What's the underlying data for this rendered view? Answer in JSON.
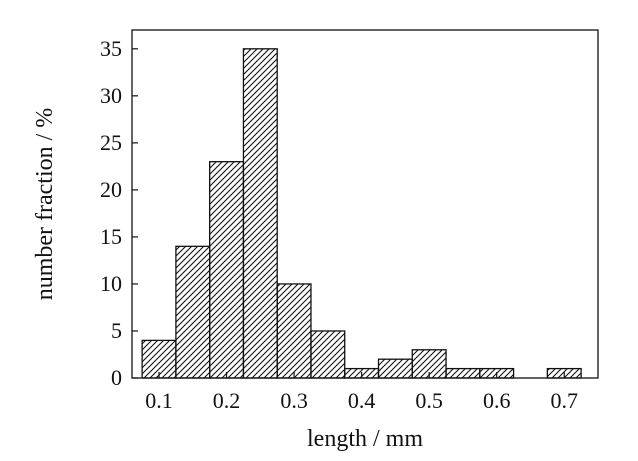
{
  "chart_data": {
    "type": "bar",
    "title": "",
    "xlabel": "length / mm",
    "ylabel": "number fraction / %",
    "bin_width": 0.05,
    "xlim": [
      0.06,
      0.75
    ],
    "ylim": [
      0,
      37
    ],
    "x_ticks": [
      0.1,
      0.2,
      0.3,
      0.4,
      0.5,
      0.6,
      0.7
    ],
    "x_tick_labels": [
      "0.1",
      "0.2",
      "0.3",
      "0.4",
      "0.5",
      "0.6",
      "0.7"
    ],
    "y_ticks": [
      0,
      5,
      10,
      15,
      20,
      25,
      30,
      35
    ],
    "y_tick_labels": [
      "0",
      "5",
      "10",
      "15",
      "20",
      "25",
      "30",
      "35"
    ],
    "bins": [
      {
        "start": 0.075,
        "end": 0.125,
        "value": 4
      },
      {
        "start": 0.125,
        "end": 0.175,
        "value": 14
      },
      {
        "start": 0.175,
        "end": 0.225,
        "value": 23
      },
      {
        "start": 0.225,
        "end": 0.275,
        "value": 35
      },
      {
        "start": 0.275,
        "end": 0.325,
        "value": 10
      },
      {
        "start": 0.325,
        "end": 0.375,
        "value": 5
      },
      {
        "start": 0.375,
        "end": 0.425,
        "value": 1
      },
      {
        "start": 0.425,
        "end": 0.475,
        "value": 2
      },
      {
        "start": 0.475,
        "end": 0.525,
        "value": 3
      },
      {
        "start": 0.525,
        "end": 0.575,
        "value": 1
      },
      {
        "start": 0.575,
        "end": 0.625,
        "value": 1
      },
      {
        "start": 0.675,
        "end": 0.725,
        "value": 1
      }
    ],
    "fill_pattern": "diagonal-hatch",
    "bar_color": "#111111",
    "background": "#ffffff",
    "grid": false,
    "legend": "none"
  }
}
